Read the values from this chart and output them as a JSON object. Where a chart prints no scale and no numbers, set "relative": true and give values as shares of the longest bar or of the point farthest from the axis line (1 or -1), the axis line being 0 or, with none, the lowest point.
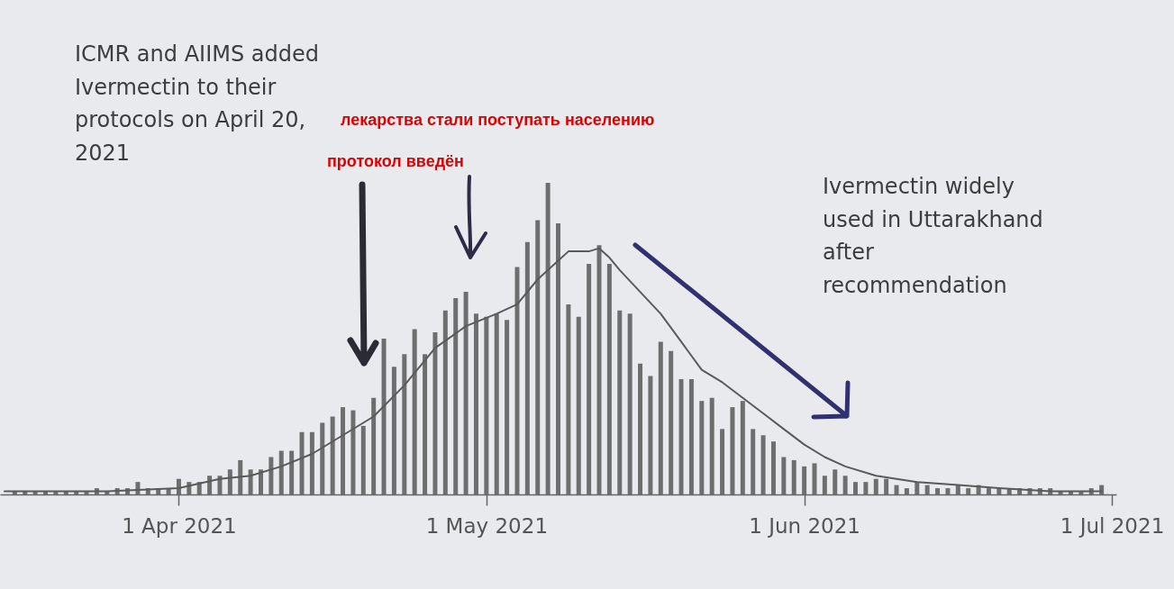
{
  "chart_data": {
    "type": "bar",
    "relative": true,
    "annotations": [
      "ICMR and AIIMS added Ivermectin to their protocols on April 20, 2021",
      "лекарства стали поступать населению",
      "протокол введён",
      "Ivermectin widely used in Uttarakhand after recommendation"
    ],
    "xlim": [
      "2021-03-15",
      "2021-07-01"
    ],
    "xticks": [
      {
        "value": "2021-04-01",
        "label": "1 Apr 2021"
      },
      {
        "value": "2021-05-01",
        "label": "1 May 2021"
      },
      {
        "value": "2021-06-01",
        "label": "1 Jun 2021"
      },
      {
        "value": "2021-07-01",
        "label": "1 Jul 2021"
      }
    ],
    "x": [
      "2021-03-16",
      "2021-03-17",
      "2021-03-18",
      "2021-03-19",
      "2021-03-20",
      "2021-03-21",
      "2021-03-22",
      "2021-03-23",
      "2021-03-24",
      "2021-03-25",
      "2021-03-26",
      "2021-03-27",
      "2021-03-28",
      "2021-03-29",
      "2021-03-30",
      "2021-03-31",
      "2021-04-01",
      "2021-04-02",
      "2021-04-03",
      "2021-04-04",
      "2021-04-05",
      "2021-04-06",
      "2021-04-07",
      "2021-04-08",
      "2021-04-09",
      "2021-04-10",
      "2021-04-11",
      "2021-04-12",
      "2021-04-13",
      "2021-04-14",
      "2021-04-15",
      "2021-04-16",
      "2021-04-17",
      "2021-04-18",
      "2021-04-19",
      "2021-04-20",
      "2021-04-21",
      "2021-04-22",
      "2021-04-23",
      "2021-04-24",
      "2021-04-25",
      "2021-04-26",
      "2021-04-27",
      "2021-04-28",
      "2021-04-29",
      "2021-04-30",
      "2021-05-01",
      "2021-05-02",
      "2021-05-03",
      "2021-05-04",
      "2021-05-05",
      "2021-05-06",
      "2021-05-07",
      "2021-05-08",
      "2021-05-09",
      "2021-05-10",
      "2021-05-11",
      "2021-05-12",
      "2021-05-13",
      "2021-05-14",
      "2021-05-15",
      "2021-05-16",
      "2021-05-17",
      "2021-05-18",
      "2021-05-19",
      "2021-05-20",
      "2021-05-21",
      "2021-05-22",
      "2021-05-23",
      "2021-05-24",
      "2021-05-25",
      "2021-05-26",
      "2021-05-27",
      "2021-05-28",
      "2021-05-29",
      "2021-05-30",
      "2021-05-31",
      "2021-06-01",
      "2021-06-02",
      "2021-06-03",
      "2021-06-04",
      "2021-06-05",
      "2021-06-06",
      "2021-06-07",
      "2021-06-08",
      "2021-06-09",
      "2021-06-10",
      "2021-06-11",
      "2021-06-12",
      "2021-06-13",
      "2021-06-14",
      "2021-06-15",
      "2021-06-16",
      "2021-06-17",
      "2021-06-18",
      "2021-06-19",
      "2021-06-20",
      "2021-06-21",
      "2021-06-22",
      "2021-06-23",
      "2021-06-24",
      "2021-06-25",
      "2021-06-26",
      "2021-06-27",
      "2021-06-28",
      "2021-06-29",
      "2021-06-30"
    ],
    "series": [
      {
        "color": "#6e6e6e",
        "values": [
          0.01,
          0.01,
          0.01,
          0.01,
          0.01,
          0.01,
          0.01,
          0.01,
          0.02,
          0.01,
          0.02,
          0.02,
          0.04,
          0.02,
          0.02,
          0.02,
          0.05,
          0.04,
          0.04,
          0.06,
          0.06,
          0.08,
          0.11,
          0.08,
          0.08,
          0.12,
          0.14,
          0.14,
          0.2,
          0.2,
          0.23,
          0.25,
          0.28,
          0.27,
          0.22,
          0.31,
          0.5,
          0.41,
          0.45,
          0.53,
          0.45,
          0.52,
          0.59,
          0.63,
          0.65,
          0.58,
          0.57,
          0.58,
          0.56,
          0.73,
          0.81,
          0.88,
          1,
          0.87,
          0.61,
          0.57,
          0.74,
          0.8,
          0.74,
          0.59,
          0.58,
          0.42,
          0.38,
          0.49,
          0.46,
          0.37,
          0.37,
          0.3,
          0.31,
          0.21,
          0.28,
          0.3,
          0.21,
          0.19,
          0.17,
          0.12,
          0.11,
          0.09,
          0.1,
          0.06,
          0.08,
          0.06,
          0.04,
          0.04,
          0.05,
          0.05,
          0.03,
          0.02,
          0.04,
          0.03,
          0.02,
          0.02,
          0.03,
          0.02,
          0.03,
          0.02,
          0.02,
          0.02,
          0.02,
          0.02,
          0.02,
          0.02,
          0.01,
          0.01,
          0.01,
          0.02,
          0.03
        ]
      },
      {
        "type": "line",
        "color": "#5a5a5a",
        "x": [
          "2021-03-15",
          "2021-03-25",
          "2021-04-01",
          "2021-04-05",
          "2021-04-08",
          "2021-04-11",
          "2021-04-14",
          "2021-04-17",
          "2021-04-20",
          "2021-04-23",
          "2021-04-26",
          "2021-04-29",
          "2021-05-02",
          "2021-05-04",
          "2021-05-06",
          "2021-05-08",
          "2021-05-09",
          "2021-05-11",
          "2021-05-12",
          "2021-05-13",
          "2021-05-14",
          "2021-05-16",
          "2021-05-18",
          "2021-05-20",
          "2021-05-22",
          "2021-05-24",
          "2021-05-26",
          "2021-05-28",
          "2021-05-30",
          "2021-06-01",
          "2021-06-03",
          "2021-06-05",
          "2021-06-08",
          "2021-06-12",
          "2021-06-16",
          "2021-06-20",
          "2021-06-25",
          "2021-06-30"
        ],
        "values": [
          0.01,
          0.01,
          0.02,
          0.05,
          0.06,
          0.09,
          0.13,
          0.19,
          0.25,
          0.35,
          0.47,
          0.54,
          0.58,
          0.61,
          0.69,
          0.75,
          0.78,
          0.78,
          0.79,
          0.76,
          0.72,
          0.65,
          0.58,
          0.49,
          0.4,
          0.36,
          0.31,
          0.26,
          0.21,
          0.16,
          0.12,
          0.09,
          0.06,
          0.04,
          0.03,
          0.02,
          0.01,
          0.01
        ]
      }
    ]
  }
}
